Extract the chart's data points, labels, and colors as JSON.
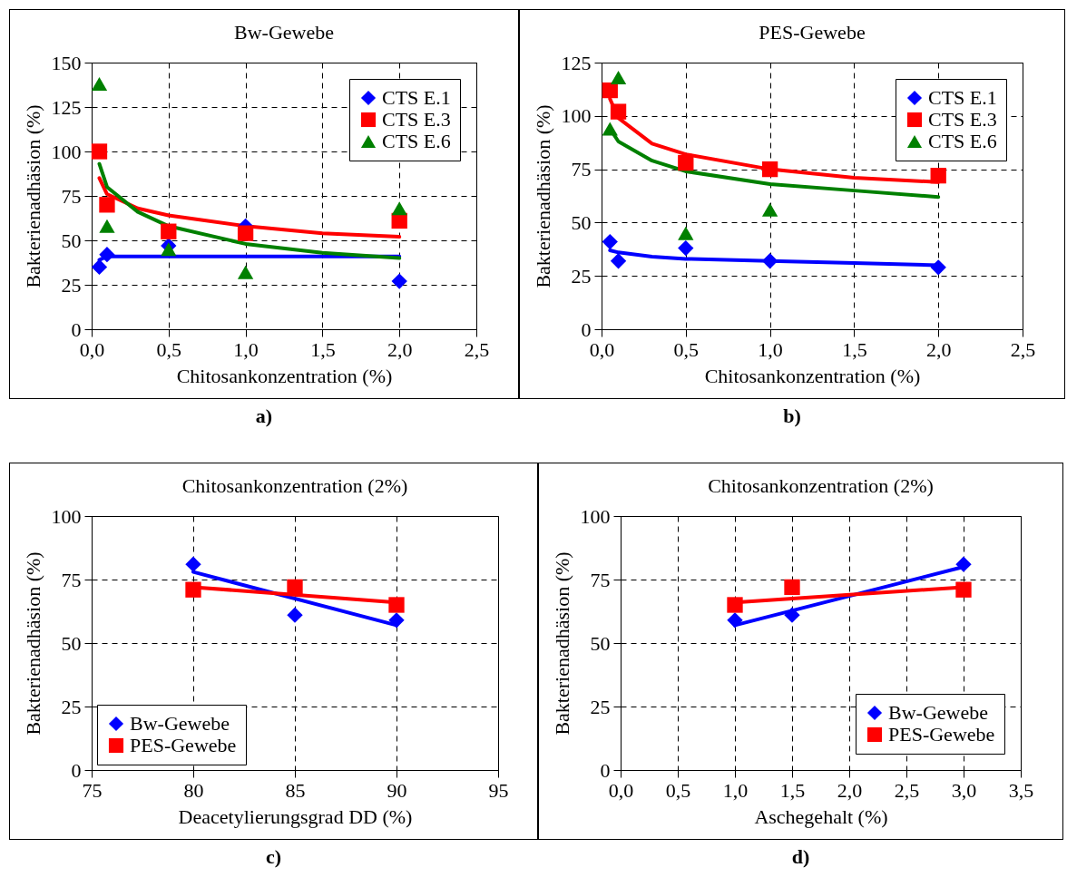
{
  "chart_data": [
    {
      "type": "scatter",
      "title": "Bw-Gewebe",
      "xlabel": "Chitosankonzentration (%)",
      "ylabel": "Bakterienadhäsion (%)",
      "annotations": [
        "a)"
      ],
      "xlim": [
        0,
        2.5
      ],
      "xticks": [
        {
          "value": 0,
          "label": "0,0"
        },
        {
          "value": 0.5,
          "label": "0,5"
        },
        {
          "value": 1,
          "label": "1,0"
        },
        {
          "value": 1.5,
          "label": "1,5"
        },
        {
          "value": 2,
          "label": "2,0"
        },
        {
          "value": 2.5,
          "label": "2,5"
        }
      ],
      "ylim": [
        0,
        150
      ],
      "yticks": [
        0,
        25,
        50,
        75,
        100,
        125,
        150
      ],
      "grid": true,
      "legend": "top right",
      "series": [
        {
          "name": "CTS E.1",
          "color": "#0000ff",
          "marker": "diamond",
          "x": [
            0.05,
            0.1,
            0.5,
            1,
            2
          ],
          "values": [
            35,
            42,
            47,
            58,
            27
          ]
        },
        {
          "name": "CTS E.3",
          "color": "#ff0000",
          "marker": "square",
          "x": [
            0.05,
            0.1,
            0.5,
            1,
            2
          ],
          "values": [
            100,
            70,
            55,
            54,
            61
          ]
        },
        {
          "name": "CTS E.6",
          "color": "#008000",
          "marker": "triangle",
          "x": [
            0.05,
            0.1,
            0.5,
            1,
            2
          ],
          "values": [
            138,
            58,
            45,
            32,
            68
          ]
        },
        {
          "type": "line",
          "color": "#0000ff",
          "x": [
            0.05,
            0.1,
            0.5,
            1,
            1.5,
            2
          ],
          "values": [
            39,
            41,
            41,
            41,
            41,
            41
          ]
        },
        {
          "type": "line",
          "color": "#ff0000",
          "x": [
            0.05,
            0.1,
            0.3,
            0.5,
            1,
            1.5,
            2
          ],
          "values": [
            85,
            76,
            68,
            64,
            58,
            54,
            52
          ]
        },
        {
          "type": "line",
          "color": "#008000",
          "x": [
            0.05,
            0.1,
            0.3,
            0.5,
            1,
            1.5,
            2
          ],
          "values": [
            93,
            80,
            66,
            58,
            48,
            43,
            40
          ]
        }
      ]
    },
    {
      "type": "scatter",
      "title": "PES-Gewebe",
      "xlabel": "Chitosankonzentration (%)",
      "ylabel": "Bakterienadhäsion (%)",
      "annotations": [
        "b)"
      ],
      "xlim": [
        0,
        2.5
      ],
      "xticks": [
        {
          "value": 0,
          "label": "0,0"
        },
        {
          "value": 0.5,
          "label": "0,5"
        },
        {
          "value": 1,
          "label": "1,0"
        },
        {
          "value": 1.5,
          "label": "1,5"
        },
        {
          "value": 2,
          "label": "2,0"
        },
        {
          "value": 2.5,
          "label": "2,5"
        }
      ],
      "ylim": [
        0,
        125
      ],
      "yticks": [
        0,
        25,
        50,
        75,
        100,
        125
      ],
      "grid": true,
      "legend": "top right",
      "series": [
        {
          "name": "CTS E.1",
          "color": "#0000ff",
          "marker": "diamond",
          "x": [
            0.05,
            0.1,
            0.5,
            1,
            2
          ],
          "values": [
            41,
            32,
            38,
            32,
            29
          ]
        },
        {
          "name": "CTS E.3",
          "color": "#ff0000",
          "marker": "square",
          "x": [
            0.05,
            0.1,
            0.5,
            1,
            2
          ],
          "values": [
            112,
            102,
            78,
            75,
            72
          ]
        },
        {
          "name": "CTS E.6",
          "color": "#008000",
          "marker": "triangle",
          "x": [
            0.05,
            0.1,
            0.5,
            1
          ],
          "values": [
            94,
            118,
            45,
            56
          ]
        },
        {
          "type": "line",
          "color": "#0000ff",
          "x": [
            0.05,
            0.1,
            0.3,
            0.5,
            1,
            1.5,
            2
          ],
          "values": [
            37,
            36,
            34,
            33,
            32,
            31,
            30
          ]
        },
        {
          "type": "line",
          "color": "#ff0000",
          "x": [
            0.05,
            0.1,
            0.3,
            0.5,
            1,
            1.5,
            2
          ],
          "values": [
            108,
            99,
            87,
            82,
            75,
            71,
            69
          ]
        },
        {
          "type": "line",
          "color": "#008000",
          "x": [
            0.05,
            0.1,
            0.3,
            0.5,
            1,
            1.5,
            2
          ],
          "values": [
            94,
            88,
            79,
            74,
            68,
            65,
            62
          ]
        }
      ]
    },
    {
      "type": "scatter",
      "title": "Chitosankonzentration (2%)",
      "xlabel": "Deacetylierungsgrad DD (%)",
      "ylabel": "Bakterienadhäsion (%)",
      "annotations": [
        "c)"
      ],
      "xlim": [
        75,
        95
      ],
      "xticks": [
        75,
        80,
        85,
        90,
        95
      ],
      "ylim": [
        0,
        100
      ],
      "yticks": [
        0,
        25,
        50,
        75,
        100
      ],
      "grid": true,
      "legend": "bottom",
      "series": [
        {
          "name": "Bw-Gewebe",
          "color": "#0000ff",
          "marker": "diamond",
          "x": [
            80,
            85,
            90
          ],
          "values": [
            81,
            61,
            59
          ]
        },
        {
          "name": "PES-Gewebe",
          "color": "#ff0000",
          "marker": "square",
          "x": [
            80,
            85,
            90
          ],
          "values": [
            71,
            72,
            65
          ]
        },
        {
          "type": "line",
          "color": "#0000ff",
          "x": [
            80,
            90
          ],
          "values": [
            78,
            57
          ]
        },
        {
          "type": "line",
          "color": "#ff0000",
          "x": [
            80,
            90
          ],
          "values": [
            72,
            66
          ]
        }
      ]
    },
    {
      "type": "scatter",
      "title": "Chitosankonzentration (2%)",
      "xlabel": "Aschegehalt (%)",
      "ylabel": "Bakterienadhäsion (%)",
      "annotations": [
        "d)"
      ],
      "xlim": [
        0,
        3.5
      ],
      "xticks": [
        {
          "value": 0,
          "label": "0,0"
        },
        {
          "value": 0.5,
          "label": "0,5"
        },
        {
          "value": 1,
          "label": "1,0"
        },
        {
          "value": 1.5,
          "label": "1,5"
        },
        {
          "value": 2,
          "label": "2,0"
        },
        {
          "value": 2.5,
          "label": "2,5"
        },
        {
          "value": 3,
          "label": "3,0"
        },
        {
          "value": 3.5,
          "label": "3,5"
        }
      ],
      "ylim": [
        0,
        100
      ],
      "yticks": [
        0,
        25,
        50,
        75,
        100
      ],
      "grid": true,
      "legend": "bottom right",
      "series": [
        {
          "name": "Bw-Gewebe",
          "color": "#0000ff",
          "marker": "diamond",
          "x": [
            1,
            1.5,
            3
          ],
          "values": [
            59,
            61,
            81
          ]
        },
        {
          "name": "PES-Gewebe",
          "color": "#ff0000",
          "marker": "square",
          "x": [
            1,
            1.5,
            3
          ],
          "values": [
            65,
            72,
            71
          ]
        },
        {
          "type": "line",
          "color": "#0000ff",
          "x": [
            1,
            3
          ],
          "values": [
            57,
            80
          ]
        },
        {
          "type": "line",
          "color": "#ff0000",
          "x": [
            1,
            3
          ],
          "values": [
            66,
            72
          ]
        }
      ]
    }
  ]
}
